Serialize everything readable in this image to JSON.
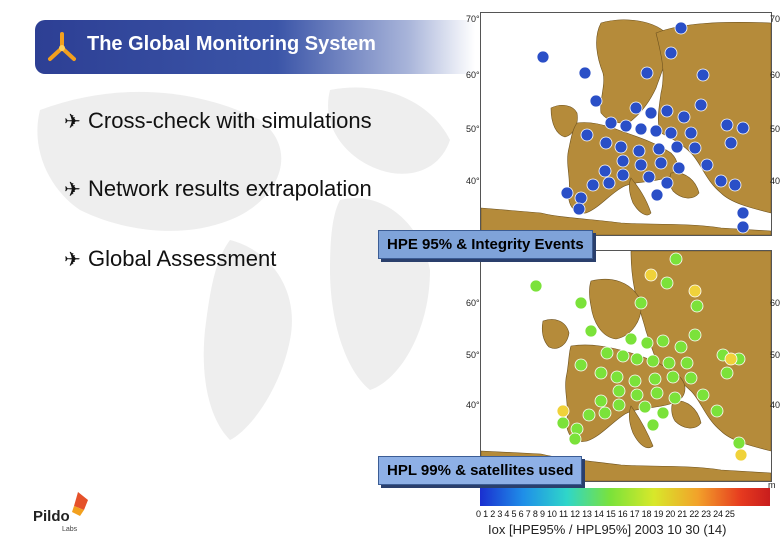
{
  "slide": {
    "title": "The Global Monitoring System",
    "bullets": [
      {
        "text": "Cross-check with simulations"
      },
      {
        "text": "Network results extrapolation"
      },
      {
        "text": "Global Assessment"
      }
    ],
    "callout_top": "HPE 95% & Integrity Events",
    "callout_bottom": "HPL 99% & satellites used",
    "colorbar_ticks": "0  1  2  3  4  5  6  7  8  9 10 11 12 13 14 15 16 17 18 19 20 21 22 23 24 25",
    "caption": "Iox   [HPE95% / HPL95%]   2003 10 30   (14)",
    "colorbar_unit": "m",
    "logo_name": "Pildo",
    "logo_sub": "Labs"
  },
  "map_top": {
    "lat_labels": [
      "70°",
      "60°",
      "50°",
      "40°"
    ],
    "right_labels": [
      "70°",
      "60°",
      "50°",
      "40°"
    ]
  },
  "map_bottom": {
    "lat_labels": [
      "60°",
      "50°",
      "40°"
    ],
    "right_labels": [
      "60°",
      "50°",
      "40°"
    ]
  },
  "colors": {
    "title_bar": "#2d3f94",
    "land": "#b58b3a",
    "sea": "#ffffff",
    "marker_top": "#2a4fc7",
    "marker_bottom": "#7be23a",
    "callout": "#7fa3d9"
  }
}
